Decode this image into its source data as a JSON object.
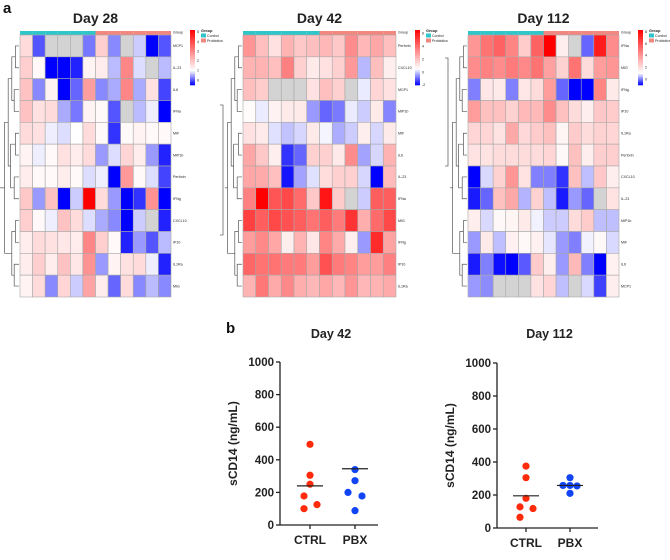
{
  "panel_labels": {
    "a": "a",
    "b": "b"
  },
  "legend": {
    "title": "Group",
    "control": "Control",
    "probiotics": "Probiotics",
    "group_row": "Group"
  },
  "colors": {
    "control": "#2ec6c8",
    "probiotics": "#f2877f",
    "low": "#0000ff",
    "mid": "#ffffff",
    "high": "#ff0000",
    "missing": "#d3d3d3",
    "ctrl_dots": "#ff2a0a",
    "pbx_dots": "#1144f5"
  },
  "chart_data": [
    {
      "type": "heatmap",
      "title": "Day 28",
      "columns_group": [
        "Control",
        "Control",
        "Control",
        "Control",
        "Control",
        "Control",
        "Probiotics",
        "Probiotics",
        "Probiotics",
        "Probiotics",
        "Probiotics",
        "Probiotics"
      ],
      "rows": [
        "MCP1",
        "IL-23",
        "IL6",
        "IFNa",
        "MIF",
        "MIP1b",
        "Perforin",
        "IFNg",
        "CXCL10",
        "IP10",
        "IL1Ra",
        "MIG"
      ],
      "scale": {
        "min": -0.5,
        "mid": 1,
        "max": 5.2,
        "ticks": [
          "5",
          "4",
          "3",
          "2",
          "1",
          "0"
        ],
        "tick_values": [
          5,
          4,
          3,
          2,
          1,
          0
        ]
      },
      "values": [
        [
          1.6,
          0,
          null,
          null,
          null,
          0.2,
          1.8,
          0.3,
          null,
          0.7,
          -0.5,
          0
        ],
        [
          1.8,
          1.1,
          -0.5,
          -0.5,
          -0.3,
          1.2,
          1.3,
          0.6,
          3,
          0.8,
          null,
          0.6
        ],
        [
          2,
          0.3,
          1.2,
          -0.5,
          0.1,
          2.6,
          0.3,
          0.5,
          3,
          0.5,
          1.5,
          -0.1
        ],
        [
          2,
          1.5,
          1.6,
          0.5,
          0.2,
          1.2,
          1.1,
          0,
          null,
          0.6,
          0.9,
          -0.5
        ],
        [
          1.6,
          1.5,
          0.9,
          0.8,
          1.0,
          1.6,
          1.1,
          -0.2,
          1.1,
          1.2,
          1.1,
          1.1
        ],
        [
          1.2,
          0.9,
          1.1,
          1.5,
          1.3,
          1.6,
          0.4,
          0.8,
          1.7,
          1.3,
          0.4,
          -0.3
        ],
        [
          1.3,
          1.1,
          1.1,
          1.3,
          1.1,
          0.8,
          0.9,
          -0.5,
          2.7,
          1.1,
          0.8,
          -0.1
        ],
        [
          1.9,
          0.4,
          2,
          -0.5,
          0.7,
          5.2,
          1.6,
          0.4,
          -0.5,
          -0.2,
          2.8,
          -0.5
        ],
        [
          1.8,
          1.1,
          0.9,
          2,
          1.6,
          0.8,
          0.5,
          0.3,
          -0.5,
          0.7,
          null,
          -0.3
        ],
        [
          1.3,
          1.6,
          1.5,
          1.4,
          1.3,
          3,
          1.8,
          1.1,
          -0.3,
          0.4,
          0,
          0.6
        ],
        [
          1.3,
          1.8,
          1.3,
          2,
          1.4,
          2.8,
          0.4,
          1.2,
          1.5,
          1.6,
          0.9,
          -0.3
        ],
        [
          1.2,
          1.6,
          0.3,
          1.7,
          0.7,
          2.5,
          1.3,
          0.1,
          1.6,
          0.3,
          0.6,
          0.3
        ]
      ]
    },
    {
      "type": "heatmap",
      "title": "Day 42",
      "columns_group": [
        "Control",
        "Control",
        "Control",
        "Control",
        "Control",
        "Control",
        "Probiotics",
        "Probiotics",
        "Probiotics",
        "Probiotics",
        "Probiotics",
        "Probiotics"
      ],
      "rows": [
        "Perforin",
        "CXCL10",
        "MCP1",
        "MIP1b",
        "MIF",
        "IL6",
        "IL-23",
        "IFNa",
        "MIG",
        "IFNg",
        "IP10",
        "IL1Ra"
      ],
      "scale": {
        "min": -2,
        "mid": 0.5,
        "max": 6.5,
        "ticks": [
          "6",
          "4",
          "2",
          "0",
          "-2"
        ],
        "tick_values": [
          6,
          4,
          2,
          0,
          -2
        ]
      },
      "values": [
        [
          3,
          2,
          1.2,
          2.3,
          1.8,
          2,
          2.2,
          1.8,
          3.2,
          2.2,
          2.6,
          2
        ],
        [
          2.3,
          2.3,
          2,
          3.5,
          1.6,
          1,
          1.2,
          1.6,
          2.9,
          -0.2,
          2,
          0.9
        ],
        [
          2,
          1.7,
          null,
          null,
          null,
          1.2,
          2,
          1.6,
          null,
          0.3,
          1.5,
          1.2
        ],
        [
          0.6,
          0.3,
          0.8,
          1,
          1,
          -0.5,
          -1,
          -0.8,
          0.3,
          0,
          1,
          -0.7
        ],
        [
          1.2,
          1,
          0.2,
          -0.1,
          0.1,
          1,
          0.4,
          -0.3,
          0,
          0.9,
          0.1,
          1
        ],
        [
          2.6,
          1.8,
          0.9,
          -1.5,
          -1,
          1.6,
          1.6,
          1,
          3.2,
          -0.4,
          0.1,
          2.3
        ],
        [
          2.6,
          2.5,
          2,
          -1.8,
          -0.4,
          0.2,
          1.3,
          1.6,
          1.6,
          0.1,
          -2,
          2.1
        ],
        [
          3.5,
          6.5,
          4.5,
          4.8,
          4,
          1.8,
          6,
          1.7,
          null,
          0,
          4.3,
          4.3
        ],
        [
          5,
          4.3,
          4.8,
          4.6,
          4.3,
          3.8,
          4.3,
          3.6,
          5.3,
          2.4,
          4,
          4.8
        ],
        [
          2.8,
          3.3,
          2.6,
          0.9,
          2.3,
          1.1,
          3.4,
          2.5,
          0.9,
          -0.5,
          5.5,
          2.7
        ],
        [
          4.1,
          3.8,
          3.8,
          3.6,
          3.6,
          2.8,
          4.6,
          3.6,
          3.4,
          2.8,
          2.8,
          3.5
        ],
        [
          2.3,
          3.7,
          2.5,
          3.3,
          2.4,
          2.2,
          2.6,
          2.2,
          3,
          2.2,
          2.3,
          2.5
        ]
      ]
    },
    {
      "type": "heatmap",
      "title": "Day 112",
      "columns_group": [
        "Control",
        "Control",
        "Control",
        "Control",
        "Control",
        "Control",
        "Probiotics",
        "Probiotics",
        "Probiotics",
        "Probiotics",
        "Probiotics",
        "Probiotics"
      ],
      "rows": [
        "IFNa",
        "MIG",
        "IFNg",
        "IP10",
        "IL1Ra",
        "Perforin",
        "CXCL10",
        "IL-23",
        "MIP1b",
        "MIF",
        "IL6",
        "MCP1"
      ],
      "scale": {
        "min": -1,
        "mid": 1,
        "max": 8.3,
        "ticks": [
          "8",
          "6",
          "4",
          "2",
          "0"
        ],
        "tick_values": [
          8,
          6,
          4,
          2,
          0
        ]
      },
      "values": [
        [
          4,
          5,
          5.5,
          4.5,
          2.5,
          5.5,
          8.3,
          1.5,
          null,
          -0.2,
          7.5,
          4.3
        ],
        [
          4.3,
          4.6,
          4.3,
          4.8,
          4.4,
          5,
          3.7,
          2.3,
          5,
          2,
          3.8,
          4
        ],
        [
          0,
          1.7,
          1.6,
          0,
          1.7,
          2,
          3.8,
          -0.2,
          -1,
          -1,
          4.5,
          1.6
        ],
        [
          3.8,
          2.8,
          2.8,
          2.3,
          3,
          3,
          4.3,
          2.8,
          2,
          1.5,
          2.6,
          2.5
        ],
        [
          2.2,
          2.2,
          1.8,
          3.5,
          2.1,
          2.5,
          2.8,
          1.3,
          2.5,
          2,
          2.3,
          2.2
        ],
        [
          1.8,
          1.8,
          2,
          2,
          2,
          2,
          2.2,
          1.2,
          2.8,
          1.5,
          2.4,
          2.4
        ],
        [
          -1,
          0.7,
          2.3,
          4,
          1.8,
          0,
          0,
          -0.6,
          2.8,
          0.5,
          2.6,
          1.5
        ],
        [
          -0.8,
          -0.2,
          2.8,
          3.5,
          0.4,
          2.3,
          0.5,
          -0.8,
          0.2,
          -0.2,
          null,
          1.8
        ],
        [
          1.5,
          0.7,
          1.2,
          1.3,
          1.6,
          0.9,
          0.6,
          0.6,
          2,
          2.5,
          0.5,
          0.5
        ],
        [
          0.2,
          1.6,
          0.5,
          1.4,
          1.2,
          1.4,
          0.8,
          0.2,
          0,
          0.9,
          1.2,
          0.7
        ],
        [
          -0.8,
          0,
          -0.9,
          -1,
          -0.3,
          2.5,
          1.5,
          0.2,
          3,
          0,
          -1,
          1.4
        ],
        [
          0.2,
          0.1,
          null,
          null,
          null,
          1.8,
          2.2,
          0.5,
          null,
          0.7,
          -0.5,
          1.5
        ]
      ]
    },
    {
      "type": "scatter",
      "title": "Day 42",
      "ylabel": "sCD14 (ng/mL)",
      "xlabel": "",
      "ylim": [
        0,
        1000
      ],
      "yticks": [
        "0",
        "200",
        "400",
        "600",
        "800",
        "1000"
      ],
      "ytick_values": [
        0,
        200,
        400,
        600,
        800,
        1000
      ],
      "categories": [
        "CTRL",
        "PBX"
      ],
      "series": [
        {
          "name": "CTRL",
          "values": [
            495,
            305,
            250,
            178,
            125,
            100
          ],
          "line": 240
        },
        {
          "name": "PBX",
          "values": [
            340,
            272,
            200,
            178,
            88
          ],
          "line": 345
        }
      ]
    },
    {
      "type": "scatter",
      "title": "Day 112",
      "ylabel": "sCD14 (ng/mL)",
      "xlabel": "",
      "ylim": [
        0,
        1000
      ],
      "yticks": [
        "0",
        "200",
        "400",
        "600",
        "800",
        "1000"
      ],
      "ytick_values": [
        0,
        200,
        400,
        600,
        800,
        1000
      ],
      "categories": [
        "CTRL",
        "PBX"
      ],
      "series": [
        {
          "name": "CTRL",
          "values": [
            375,
            305,
            180,
            128,
            118,
            65
          ],
          "line": 195
        },
        {
          "name": "PBX",
          "values": [
            305,
            258,
            258,
            255,
            210
          ],
          "line": 258
        }
      ]
    }
  ]
}
